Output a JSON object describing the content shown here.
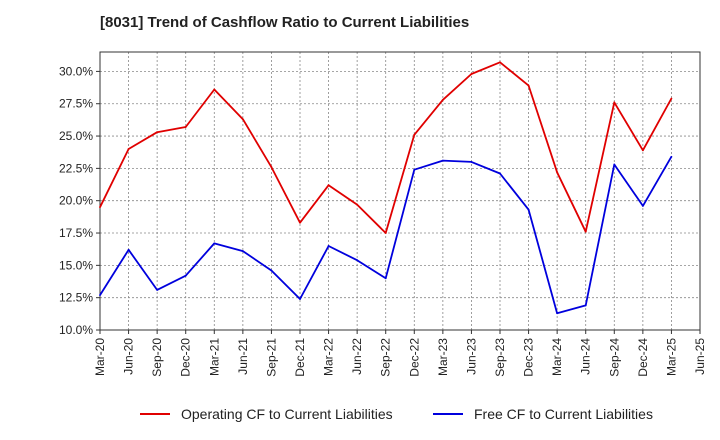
{
  "chart_data": {
    "type": "line",
    "title": "[8031]  Trend of Cashflow Ratio to Current Liabilities",
    "xlabel": "",
    "ylabel": "",
    "x": [
      "Mar-20",
      "Jun-20",
      "Sep-20",
      "Dec-20",
      "Mar-21",
      "Jun-21",
      "Sep-21",
      "Dec-21",
      "Mar-22",
      "Jun-22",
      "Sep-22",
      "Dec-22",
      "Mar-23",
      "Jun-23",
      "Sep-23",
      "Dec-23",
      "Mar-24",
      "Jun-24",
      "Sep-24",
      "Dec-24",
      "Mar-25",
      "Jun-25"
    ],
    "ylim": [
      10.0,
      31.5
    ],
    "yticks": [
      "10.0%",
      "12.5%",
      "15.0%",
      "17.5%",
      "20.0%",
      "22.5%",
      "25.0%",
      "27.5%",
      "30.0%"
    ],
    "ytick_values": [
      10.0,
      12.5,
      15.0,
      17.5,
      20.0,
      22.5,
      25.0,
      27.5,
      30.0
    ],
    "grid": true,
    "legend_position": "bottom",
    "series": [
      {
        "name": "Operating CF to Current Liabilities",
        "color": "#e00000",
        "values": [
          19.5,
          24.0,
          25.3,
          25.7,
          28.6,
          26.3,
          22.6,
          18.3,
          21.2,
          19.7,
          17.5,
          25.1,
          27.8,
          29.8,
          30.7,
          28.9,
          22.2,
          17.6,
          27.6,
          23.9,
          27.9,
          null
        ]
      },
      {
        "name": "Free CF to Current Liabilities",
        "color": "#0000dd",
        "values": [
          12.7,
          16.2,
          13.1,
          14.2,
          16.7,
          16.1,
          14.6,
          12.4,
          16.5,
          15.4,
          14.0,
          22.4,
          23.1,
          23.0,
          22.1,
          19.3,
          11.3,
          11.9,
          22.8,
          19.6,
          23.4,
          null
        ]
      }
    ]
  }
}
